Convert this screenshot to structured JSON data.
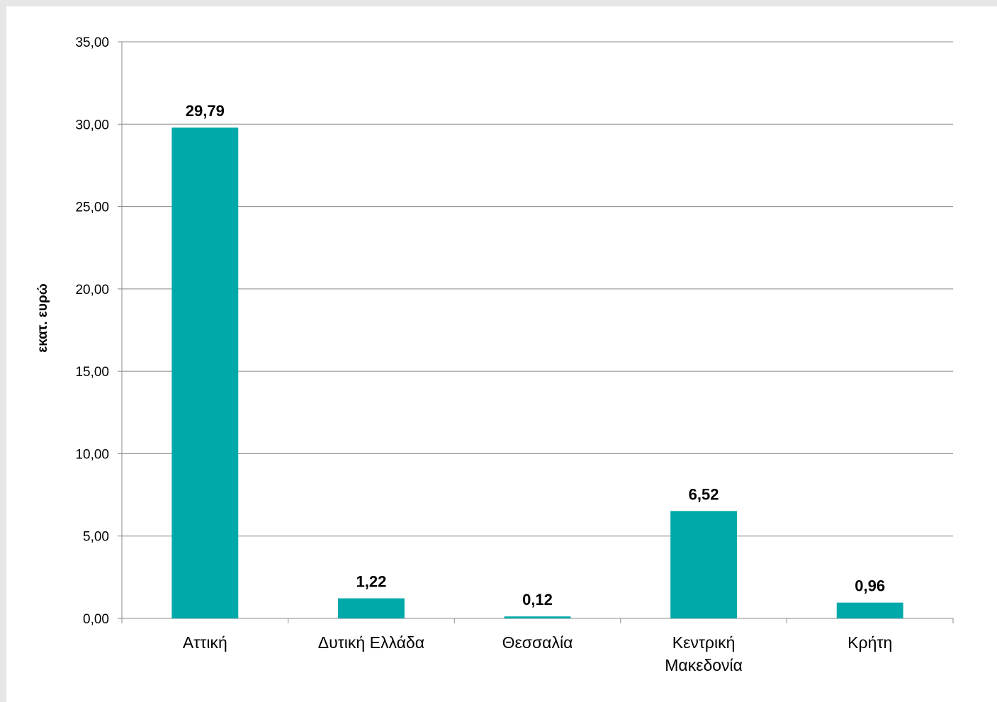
{
  "chart_data": {
    "type": "bar",
    "title": "",
    "xlabel": "",
    "ylabel": "εκατ. ευρώ",
    "ylim": [
      0,
      35
    ],
    "ytick_values": [
      0,
      5,
      10,
      15,
      20,
      25,
      30,
      35
    ],
    "ytick_labels": [
      "0,00",
      "5,00",
      "10,00",
      "15,00",
      "20,00",
      "25,00",
      "30,00",
      "35,00"
    ],
    "categories": [
      [
        "Αττική"
      ],
      [
        "Δυτική Ελλάδα"
      ],
      [
        "Θεσσαλία"
      ],
      [
        "Κεντρική",
        "Μακεδονία"
      ],
      [
        "Κρήτη"
      ]
    ],
    "values": [
      29.79,
      1.22,
      0.12,
      6.52,
      0.96
    ],
    "data_labels": [
      "29,79",
      "1,22",
      "0,12",
      "6,52",
      "0,96"
    ],
    "grid": true,
    "legend": "none",
    "colors": {
      "bar": "#00a9a9",
      "grid": "#888888",
      "axis": "#888888"
    }
  }
}
